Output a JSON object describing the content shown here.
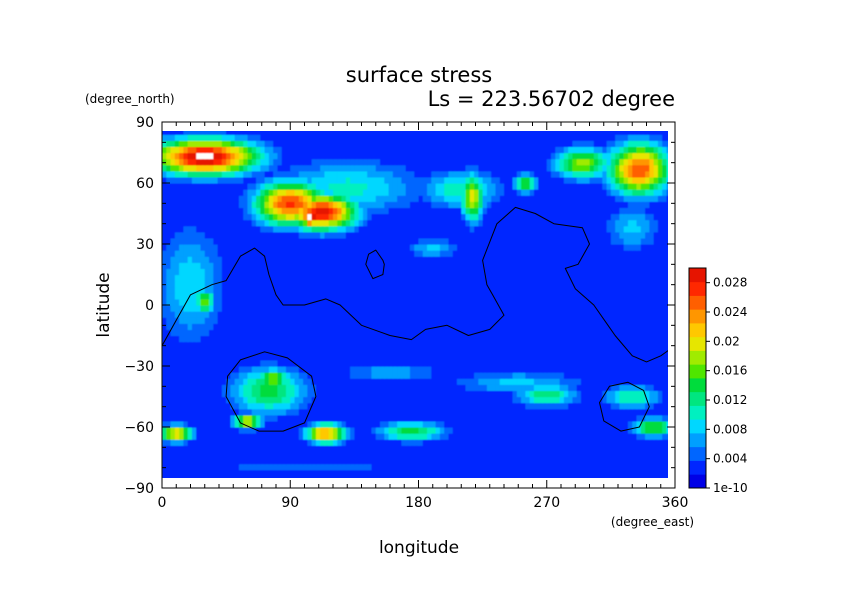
{
  "chart_data": {
    "type": "heatmap",
    "title": "surface stress",
    "subtitle": "Ls = 223.56702 degree",
    "xlabel": "longitude",
    "ylabel": "latitude",
    "x_unit": "(degree_east)",
    "y_unit": "(degree_north)",
    "xlim": [
      0,
      360
    ],
    "ylim": [
      -90,
      90
    ],
    "x_ticks": [
      "0",
      "90",
      "180",
      "270",
      "360"
    ],
    "y_ticks": [
      "90",
      "60",
      "30",
      "0",
      "−30",
      "−60",
      "−90"
    ],
    "colorbar": {
      "min": 0,
      "max": 0.03,
      "tick_labels": [
        "0.028",
        "0.024",
        "0.02",
        "0.016",
        "0.012",
        "0.008",
        "0.004",
        "1e-10"
      ],
      "colors": [
        "#0000e6",
        "#0026ff",
        "#0066ff",
        "#00a0ff",
        "#00d7ff",
        "#00f0c0",
        "#00e680",
        "#00dc3c",
        "#50e600",
        "#a0eb00",
        "#e6e600",
        "#ffc800",
        "#ff9600",
        "#ff5f00",
        "#ff2800",
        "#e61400"
      ],
      "overflow_color": "#ffffff"
    },
    "field": {
      "background": 0.003,
      "blobs": [
        {
          "lon": 30,
          "lat": 73,
          "rx": 38,
          "ry": 9,
          "value": 0.031
        },
        {
          "lon": 28,
          "lat": 72,
          "rx": 14,
          "ry": 3,
          "value": 0.034
        },
        {
          "lon": 50,
          "lat": 73,
          "rx": 22,
          "ry": 6,
          "value": 0.02
        },
        {
          "lon": 90,
          "lat": 50,
          "rx": 25,
          "ry": 11,
          "value": 0.027
        },
        {
          "lon": 112,
          "lat": 46,
          "rx": 25,
          "ry": 9,
          "value": 0.029
        },
        {
          "lon": 104,
          "lat": 43,
          "rx": 6,
          "ry": 4,
          "value": 0.034
        },
        {
          "lon": 130,
          "lat": 58,
          "rx": 55,
          "ry": 14,
          "value": 0.01
        },
        {
          "lon": 210,
          "lat": 57,
          "rx": 30,
          "ry": 10,
          "value": 0.011
        },
        {
          "lon": 218,
          "lat": 53,
          "rx": 8,
          "ry": 12,
          "value": 0.02
        },
        {
          "lon": 255,
          "lat": 60,
          "rx": 8,
          "ry": 5,
          "value": 0.016
        },
        {
          "lon": 295,
          "lat": 70,
          "rx": 20,
          "ry": 8,
          "value": 0.018
        },
        {
          "lon": 335,
          "lat": 67,
          "rx": 22,
          "ry": 13,
          "value": 0.026
        },
        {
          "lon": 330,
          "lat": 38,
          "rx": 20,
          "ry": 12,
          "value": 0.008
        },
        {
          "lon": 20,
          "lat": 10,
          "rx": 25,
          "ry": 30,
          "value": 0.009
        },
        {
          "lon": 30,
          "lat": 2,
          "rx": 7,
          "ry": 6,
          "value": 0.017
        },
        {
          "lon": 190,
          "lat": 28,
          "rx": 20,
          "ry": 5,
          "value": 0.008
        },
        {
          "lon": 75,
          "lat": -42,
          "rx": 28,
          "ry": 12,
          "value": 0.014
        },
        {
          "lon": 78,
          "lat": -36,
          "rx": 12,
          "ry": 5,
          "value": 0.018
        },
        {
          "lon": 60,
          "lat": -57,
          "rx": 10,
          "ry": 4,
          "value": 0.02
        },
        {
          "lon": 115,
          "lat": -63,
          "rx": 14,
          "ry": 5,
          "value": 0.024
        },
        {
          "lon": 10,
          "lat": -63,
          "rx": 12,
          "ry": 4,
          "value": 0.022
        },
        {
          "lon": 175,
          "lat": -62,
          "rx": 25,
          "ry": 5,
          "value": 0.014
        },
        {
          "lon": 270,
          "lat": -44,
          "rx": 22,
          "ry": 6,
          "value": 0.013
        },
        {
          "lon": 330,
          "lat": -45,
          "rx": 20,
          "ry": 6,
          "value": 0.012
        },
        {
          "lon": 345,
          "lat": -60,
          "rx": 15,
          "ry": 5,
          "value": 0.016
        },
        {
          "lon": 250,
          "lat": -38,
          "rx": 50,
          "ry": 6,
          "value": 0.008
        },
        {
          "lon": 160,
          "lat": -33,
          "rx": 40,
          "ry": 5,
          "value": 0.007
        },
        {
          "lon": 100,
          "lat": -80,
          "rx": 90,
          "ry": 4,
          "value": 0.005
        }
      ]
    },
    "contours": [
      {
        "points": [
          [
            0,
            -20
          ],
          [
            20,
            5
          ],
          [
            35,
            10
          ],
          [
            45,
            12
          ],
          [
            55,
            24
          ],
          [
            65,
            28
          ],
          [
            72,
            24
          ],
          [
            75,
            15
          ],
          [
            80,
            5
          ],
          [
            85,
            0
          ],
          [
            100,
            0
          ],
          [
            115,
            3
          ],
          [
            125,
            0
          ],
          [
            140,
            -10
          ],
          [
            160,
            -15
          ],
          [
            175,
            -17
          ],
          [
            185,
            -12
          ],
          [
            200,
            -10
          ],
          [
            215,
            -15
          ],
          [
            230,
            -12
          ],
          [
            240,
            -5
          ],
          [
            232,
            5
          ],
          [
            228,
            10
          ],
          [
            225,
            22
          ],
          [
            235,
            40
          ],
          [
            248,
            48
          ],
          [
            262,
            45
          ],
          [
            275,
            40
          ],
          [
            295,
            38
          ],
          [
            300,
            30
          ],
          [
            292,
            20
          ],
          [
            283,
            18
          ],
          [
            290,
            8
          ],
          [
            303,
            0
          ],
          [
            313,
            -10
          ],
          [
            318,
            -15
          ],
          [
            330,
            -25
          ],
          [
            340,
            -28
          ],
          [
            350,
            -25
          ],
          [
            360,
            -20
          ]
        ],
        "closed": false
      },
      {
        "points": [
          [
            155,
            22
          ],
          [
            150,
            27
          ],
          [
            145,
            25
          ],
          [
            143,
            20
          ],
          [
            148,
            13
          ],
          [
            155,
            15
          ],
          [
            156,
            20
          ]
        ],
        "closed": true
      },
      {
        "points": [
          [
            72,
            -23
          ],
          [
            88,
            -26
          ],
          [
            105,
            -35
          ],
          [
            108,
            -45
          ],
          [
            100,
            -58
          ],
          [
            85,
            -62
          ],
          [
            68,
            -62
          ],
          [
            55,
            -58
          ],
          [
            45,
            -45
          ],
          [
            46,
            -35
          ],
          [
            55,
            -27
          ]
        ],
        "closed": true
      },
      {
        "points": [
          [
            327,
            -38
          ],
          [
            338,
            -42
          ],
          [
            342,
            -50
          ],
          [
            335,
            -60
          ],
          [
            322,
            -62
          ],
          [
            310,
            -57
          ],
          [
            307,
            -48
          ],
          [
            314,
            -40
          ]
        ],
        "closed": true
      }
    ]
  }
}
